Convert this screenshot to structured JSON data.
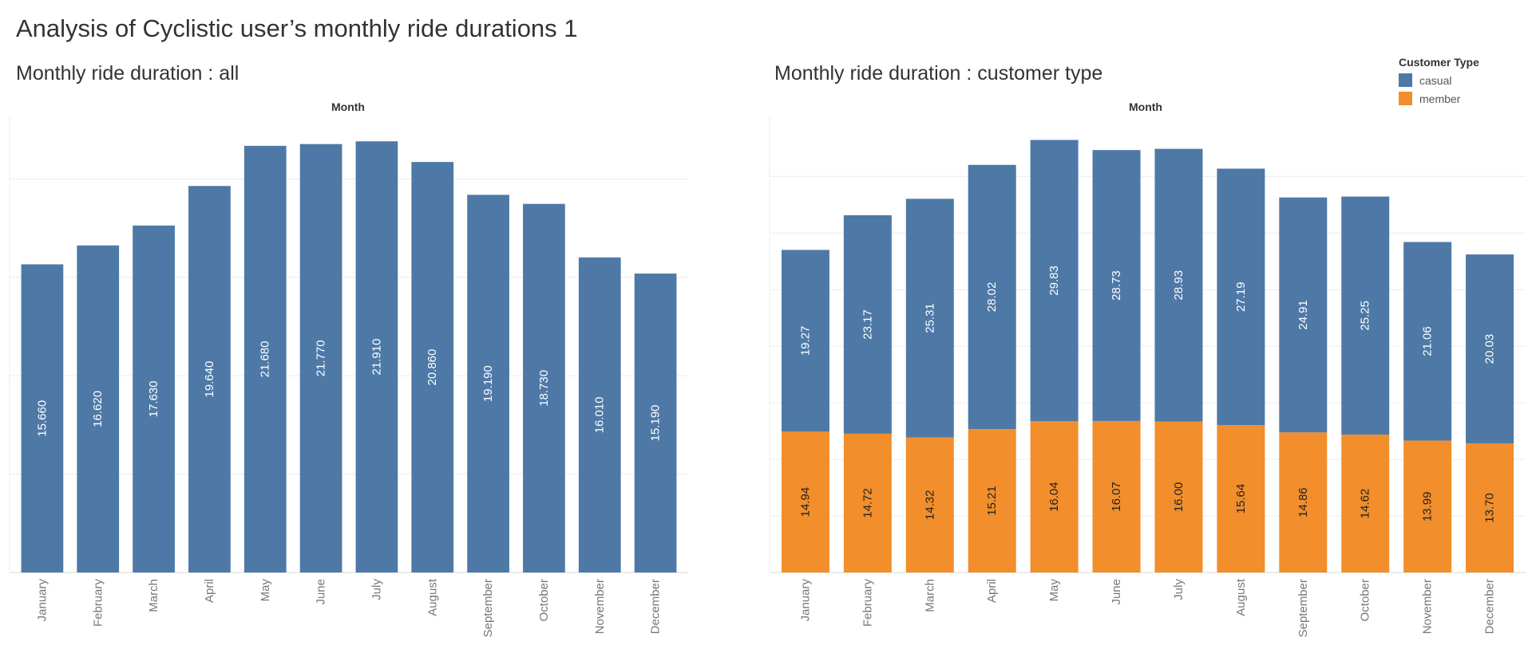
{
  "dashboard": {
    "title": "Analysis of Cyclistic user’s monthly ride durations 1"
  },
  "left_chart": {
    "sheet_title": "Monthly ride duration : all",
    "column_header": "Month"
  },
  "right_chart": {
    "sheet_title": "Monthly ride duration : customer type",
    "column_header": "Month"
  },
  "legend": {
    "title": "Customer Type",
    "items": [
      {
        "label": "casual",
        "color": "#4e79a7"
      },
      {
        "label": "member",
        "color": "#f28e2b"
      }
    ]
  },
  "chart_data": [
    {
      "type": "bar",
      "title": "Monthly ride duration : all",
      "xlabel": "Month",
      "ylabel": "",
      "categories": [
        "January",
        "February",
        "March",
        "April",
        "May",
        "June",
        "July",
        "August",
        "September",
        "October",
        "November",
        "December"
      ],
      "values": [
        15.66,
        16.62,
        17.63,
        19.64,
        21.68,
        21.77,
        21.91,
        20.86,
        19.19,
        18.73,
        16.01,
        15.19
      ],
      "data_labels": [
        "15.660",
        "16.620",
        "17.630",
        "19.640",
        "21.680",
        "21.770",
        "21.910",
        "20.860",
        "19.190",
        "18.730",
        "16.010",
        "15.190"
      ],
      "ylim": [
        0,
        22
      ],
      "grid": true,
      "color": "#4e79a7"
    },
    {
      "type": "bar",
      "stacked": true,
      "title": "Monthly ride duration : customer type",
      "xlabel": "Month",
      "ylabel": "",
      "categories": [
        "January",
        "February",
        "March",
        "April",
        "May",
        "June",
        "July",
        "August",
        "September",
        "October",
        "November",
        "December"
      ],
      "series": [
        {
          "name": "member",
          "color": "#f28e2b",
          "values": [
            14.94,
            14.72,
            14.32,
            15.21,
            16.04,
            16.07,
            16.0,
            15.64,
            14.86,
            14.62,
            13.99,
            13.7
          ],
          "data_labels": [
            "14.94",
            "14.72",
            "14.32",
            "15.21",
            "16.04",
            "16.07",
            "16.00",
            "15.64",
            "14.86",
            "14.62",
            "13.99",
            "13.70"
          ]
        },
        {
          "name": "casual",
          "color": "#4e79a7",
          "values": [
            19.27,
            23.17,
            25.31,
            28.02,
            29.83,
            28.73,
            28.93,
            27.19,
            24.91,
            25.25,
            21.06,
            20.03
          ],
          "data_labels": [
            "19.27",
            "23.17",
            "25.31",
            "28.02",
            "29.83",
            "28.73",
            "28.93",
            "27.19",
            "24.91",
            "25.25",
            "21.06",
            "20.03"
          ]
        }
      ],
      "ylim": [
        0,
        46
      ],
      "grid": true,
      "legend_position": "top-right"
    }
  ]
}
